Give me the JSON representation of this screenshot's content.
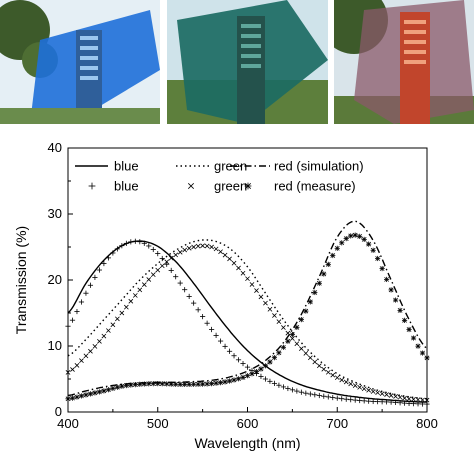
{
  "colors": {
    "curve": "#000000",
    "blue_filter": "#1e6fd9",
    "green_filter": "#1c6b63",
    "red_filter": "#c1452c",
    "sky": "#d7e6ef",
    "tree": "#3d5a2a"
  },
  "photos": [
    {
      "name": "blue-filter-photo",
      "tint": "blue"
    },
    {
      "name": "green-filter-photo",
      "tint": "green"
    },
    {
      "name": "red-filter-photo",
      "tint": "red"
    }
  ],
  "chart_data": {
    "type": "line",
    "xlabel": "Wavelength (nm)",
    "ylabel": "Transmission (%)",
    "xlim": [
      400,
      800
    ],
    "ylim": [
      0,
      40
    ],
    "xticks": [
      400,
      500,
      600,
      700,
      800
    ],
    "yticks": [
      0,
      10,
      20,
      30,
      40
    ],
    "grid": false,
    "legend_position": "top",
    "x": [
      400,
      420,
      440,
      460,
      480,
      500,
      520,
      540,
      560,
      580,
      600,
      620,
      640,
      660,
      680,
      700,
      720,
      740,
      760,
      780,
      800
    ],
    "series": [
      {
        "name": "blue",
        "group": "simulation",
        "style": "solid",
        "values": [
          15.0,
          19.5,
          23.0,
          25.2,
          25.9,
          25.1,
          22.8,
          19.5,
          15.8,
          12.3,
          9.3,
          7.0,
          5.3,
          4.1,
          3.3,
          2.7,
          2.3,
          2.0,
          1.8,
          1.6,
          1.5
        ]
      },
      {
        "name": "green",
        "group": "simulation",
        "style": "dotted",
        "values": [
          8.5,
          11.0,
          14.0,
          17.0,
          20.0,
          22.5,
          24.5,
          25.8,
          26.0,
          24.8,
          22.0,
          18.0,
          14.0,
          10.5,
          7.8,
          5.8,
          4.5,
          3.5,
          2.8,
          2.3,
          2.0
        ]
      },
      {
        "name": "red (simulation)",
        "group": "simulation",
        "style": "dashdot",
        "values": [
          2.5,
          3.2,
          3.8,
          4.2,
          4.4,
          4.5,
          4.5,
          4.6,
          4.8,
          5.3,
          6.2,
          7.8,
          10.5,
          14.8,
          20.5,
          26.5,
          28.9,
          26.0,
          20.0,
          14.0,
          9.6
        ]
      },
      {
        "name": "blue",
        "group": "measure",
        "marker": "+",
        "values": [
          13.0,
          18.0,
          22.5,
          25.2,
          25.8,
          24.0,
          20.5,
          16.5,
          12.5,
          9.2,
          6.8,
          5.0,
          3.8,
          3.0,
          2.5,
          2.1,
          1.8,
          1.6,
          1.5,
          1.3,
          1.2
        ]
      },
      {
        "name": "green",
        "group": "measure",
        "marker": "x",
        "values": [
          6.0,
          8.5,
          11.5,
          15.0,
          18.5,
          21.5,
          23.8,
          25.0,
          25.0,
          23.2,
          20.2,
          16.5,
          12.8,
          9.6,
          7.0,
          5.2,
          4.0,
          3.1,
          2.5,
          2.0,
          1.8
        ]
      },
      {
        "name": "red (measure)",
        "group": "measure",
        "marker": "*",
        "values": [
          2.0,
          2.6,
          3.2,
          3.9,
          4.2,
          4.3,
          4.2,
          4.2,
          4.3,
          4.7,
          5.5,
          7.0,
          9.8,
          14.0,
          19.5,
          24.8,
          26.8,
          24.5,
          18.5,
          12.5,
          8.2
        ]
      }
    ]
  }
}
